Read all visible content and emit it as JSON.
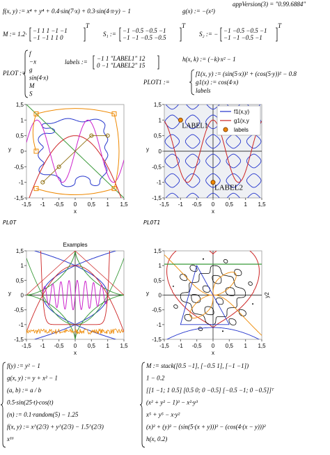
{
  "header": {
    "f": "f(x, y) := x⁴ + y⁴ + 0.4·sin(7·x) + 0.3·sin(4·π·y) − 1",
    "g": "g(x) := −(x²)",
    "appVersion": "appVersion(3) = \"0.99.6884\""
  },
  "matrices": {
    "M": {
      "name": "M := 1.2·",
      "rows": [
        "−1  1  1  −1  −1",
        "−1  −1  1  1  0"
      ],
      "sup": "T"
    },
    "S1": {
      "name": "S₁ :=",
      "rows": [
        "−1  −0.5  −0.5  −1",
        "−1  −1  −0.5  −0.5"
      ],
      "sup": "T"
    },
    "S2": {
      "name": "S₂ := −",
      "rows": [
        "−1  −0.5  −0.5  −1",
        "−1  −1  −0.5  −1"
      ],
      "sup": "T"
    }
  },
  "plot_def": {
    "name": "PLOT :=",
    "items": [
      "f",
      "−x",
      "g",
      "sin(4·x)",
      "M",
      "S"
    ]
  },
  "labels_def": {
    "name": "labels :=",
    "rows": [
      "−1  1  \"LABEL1\"  12",
      "0  −1  \"LABEL2\"  15"
    ]
  },
  "h_def": "h(x, k) := (−k)·x² − 1",
  "plot1_def": {
    "name": "PLOT1 :=",
    "items": [
      "f1(x, y) := (sin(5·x))² + (cos(5·y))² − 0.8",
      "g1(x) := cos(4·x)",
      "labels"
    ]
  },
  "plots": [
    {
      "caption": "PLOT",
      "xlabel": "x",
      "ylabel": "y",
      "xticks": [
        "-1,5",
        "-1",
        "-0,5",
        "0",
        "0,5",
        "1",
        "1,5"
      ],
      "yticks": [
        "-1,5",
        "-1",
        "-0,5",
        "0",
        "0,5",
        "1",
        "1,5"
      ]
    },
    {
      "caption": "PLOT1",
      "xlabel": "x",
      "ylabel": "y",
      "xticks": [
        "-1,5",
        "-1",
        "-0,5",
        "0",
        "0,5",
        "1",
        "1,5"
      ],
      "yticks": [
        "-1,5",
        "-1",
        "-0,5",
        "0",
        "0,5",
        "1",
        "1,5"
      ],
      "legend": [
        "f1(x,y)",
        "g1(x,y",
        "labels"
      ],
      "point_labels": [
        "LABEL1",
        "LABEL2"
      ]
    },
    {
      "title": "Examples",
      "xlabel": "x",
      "ylabel": "y",
      "xticks": [
        "-1,5",
        "-1",
        "-0,5",
        "0",
        "0,5",
        "1",
        "1,5"
      ],
      "yticks": [
        "-1,5",
        "-1",
        "-0,5",
        "0",
        "0,5",
        "1",
        "1,5"
      ]
    },
    {
      "xlabel": "x",
      "ylabel": "y",
      "y2label": "y2",
      "xticks": [
        "-1,5",
        "-1",
        "-0,5",
        "0",
        "0,5",
        "1",
        "1,5"
      ],
      "yticks": [
        "-1,5",
        "-1",
        "-0,5",
        "0",
        "0,5",
        "1",
        "1,5"
      ]
    }
  ],
  "left_block": [
    "f(y) := y² − 1",
    "g(x, y) := y + x² − 1",
    "(a, b) := a / b",
    "0.5·sin(25·t)·cos(t)",
    "(n) := 0.1·random(5) − 1.25",
    "f(x, y) := x^(2/3) + y^(2/3) − 1.5^(2/3)",
    "x¹⁶"
  ],
  "right_block": [
    "M := stack([0.5  −1], [−0.5  1], [−1  −1])",
    "1 − 0.2",
    "[[1 −1; 1 0.5]  [0.5 0; 0 −0.5]  [−0.5 −1; 0 −0.5]]ᵀ",
    "(x² + y² − 1)³ − x²·y³",
    "x⁵ + y⁵ − x·y²",
    "(x)² + (y)² − (sin(5·(x + y)))² − (cos(4·(x − y)))²",
    "h(x, 0.2)"
  ]
}
